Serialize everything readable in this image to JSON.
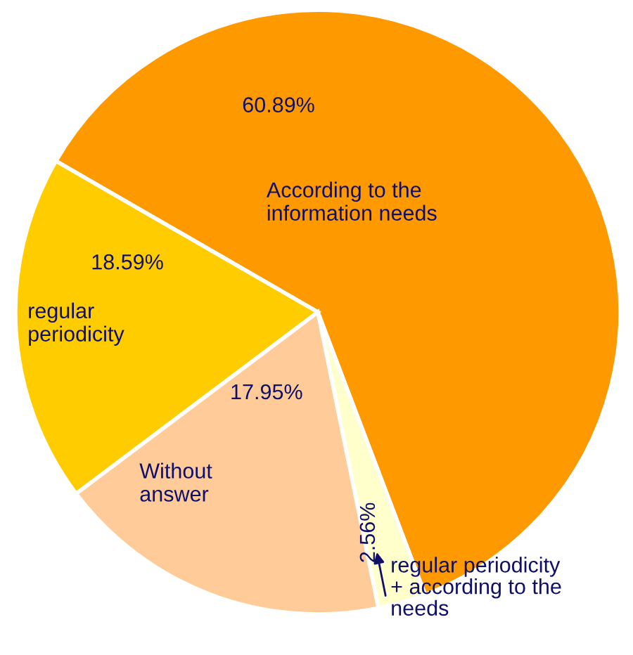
{
  "chart_data": {
    "type": "pie",
    "categories": [
      "According to the information needs",
      "regular periodicity + according to the needs",
      "Without answer",
      "regular periodicity"
    ],
    "values": [
      60.89,
      2.56,
      17.95,
      18.59
    ],
    "value_labels": [
      "60.89%",
      "2.56%",
      "17.95%",
      "18.59%"
    ],
    "colors": [
      "#ff9900",
      "#ffffcc",
      "#ffcc99",
      "#ffcc00"
    ],
    "legend": false
  }
}
